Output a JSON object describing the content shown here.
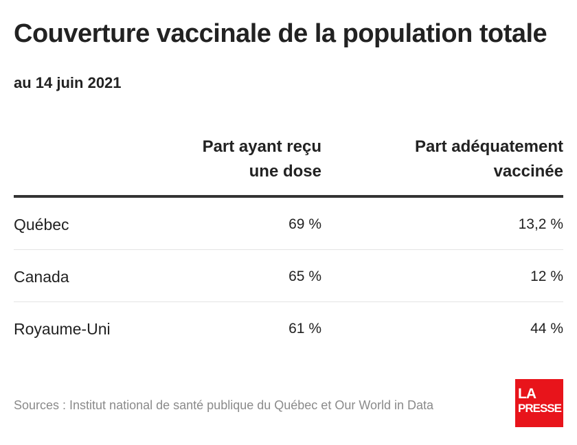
{
  "chart_data": {
    "type": "table",
    "title": "Couverture vaccinale de la population totale",
    "subtitle": "au 14 juin 2021",
    "columns": [
      {
        "header_line1": "Part ayant reçu",
        "header_line2": "une dose"
      },
      {
        "header_line1": "Part adéquatement",
        "header_line2": "vaccinée"
      }
    ],
    "rows": [
      {
        "label": "Québec",
        "values": [
          "69 %",
          "13,2 %"
        ]
      },
      {
        "label": "Canada",
        "values": [
          "65 %",
          "12 %"
        ]
      },
      {
        "label": "Royaume-Uni",
        "values": [
          "61 %",
          "44 %"
        ]
      }
    ],
    "source": "Sources : Institut national de santé publique du Québec et Our World in Data"
  },
  "logo": {
    "line1": "LA",
    "line2": "PRESSE",
    "color": "#e8141b"
  }
}
